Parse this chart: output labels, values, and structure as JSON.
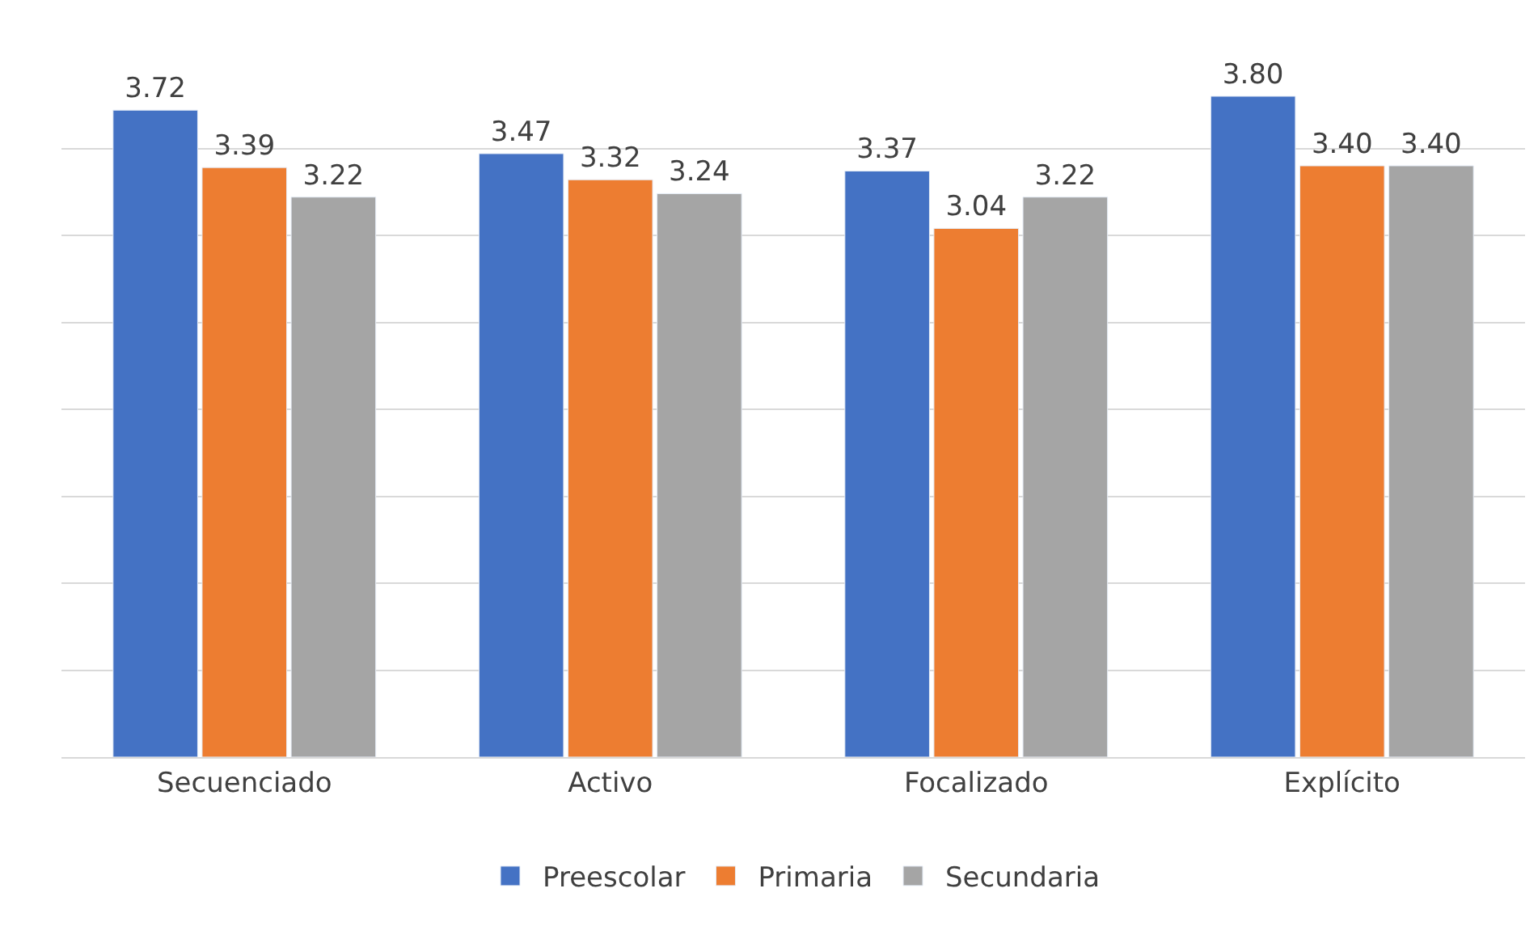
{
  "chart_data": {
    "type": "bar",
    "categories": [
      "Secuenciado",
      "Activo",
      "Focalizado",
      "Explícito"
    ],
    "series": [
      {
        "name": "Preescolar",
        "color": "#4472c4",
        "values": [
          3.72,
          3.47,
          3.37,
          3.8
        ],
        "value_labels": [
          "3.72",
          "3.47",
          "3.37",
          "3.80"
        ]
      },
      {
        "name": "Primaria",
        "color": "#ed7d31",
        "values": [
          3.39,
          3.32,
          3.04,
          3.4
        ],
        "value_labels": [
          "3.39",
          "3.32",
          "3.04",
          "3.40"
        ]
      },
      {
        "name": "Secundaria",
        "color": "#a5a5a5",
        "values": [
          3.22,
          3.24,
          3.22,
          3.4
        ],
        "value_labels": [
          "3.22",
          "3.24",
          "3.22",
          "3.40"
        ]
      }
    ],
    "tick_labels": "x",
    "grid": "y",
    "legend": "bottom"
  }
}
